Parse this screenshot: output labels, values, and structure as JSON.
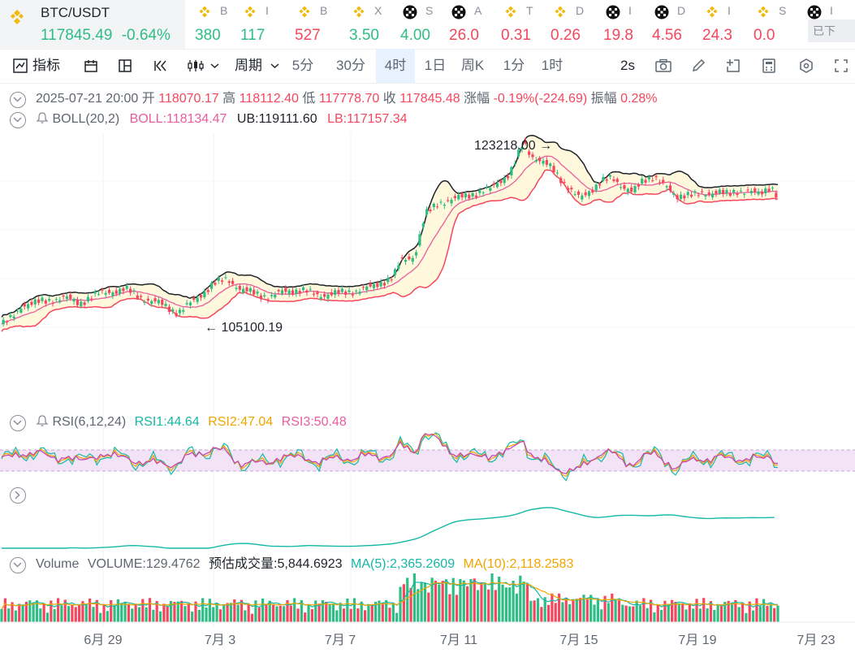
{
  "ticker": {
    "main": {
      "symbol": "BTC/USDT",
      "price": "117845.49",
      "change": "-0.64%"
    },
    "items": [
      {
        "icon": "bnb-icon",
        "symbol": "B",
        "price": "380",
        "color": "#2ebd85"
      },
      {
        "icon": "bnb-icon",
        "symbol": "I",
        "price": "117",
        "color": "#2ebd85"
      },
      {
        "icon": "bnb-icon",
        "symbol": "B",
        "price": "527",
        "color": "#f6465d"
      },
      {
        "icon": "bnb-icon",
        "symbol": "X",
        "price": "3.50",
        "color": "#2ebd85"
      },
      {
        "icon": "okx-icon",
        "symbol": "S",
        "price": "4.00",
        "color": "#2ebd85"
      },
      {
        "icon": "okx-icon",
        "symbol": "A",
        "price": "26.0",
        "color": "#f6465d"
      },
      {
        "icon": "bnb-icon",
        "symbol": "T",
        "price": "0.31",
        "color": "#f6465d"
      },
      {
        "icon": "bnb-icon",
        "symbol": "D",
        "price": "0.26",
        "color": "#f6465d"
      },
      {
        "icon": "okx-icon",
        "symbol": "I",
        "price": "19.8",
        "color": "#f6465d"
      },
      {
        "icon": "okx-icon",
        "symbol": "D",
        "price": "4.56",
        "color": "#f6465d"
      },
      {
        "icon": "bnb-icon",
        "symbol": "I",
        "price": "24.3",
        "color": "#f6465d"
      },
      {
        "icon": "bnb-icon",
        "symbol": "S",
        "price": "0.0",
        "color": "#f6465d"
      },
      {
        "icon": "okx-icon",
        "symbol": "I",
        "price": "",
        "color": "#f6465d"
      }
    ],
    "badge": "已下"
  },
  "toolbar": {
    "indicators": "指标",
    "period": "周期",
    "periods": [
      "5分",
      "30分",
      "4时",
      "1日",
      "周K",
      "1分",
      "1时"
    ],
    "selected_period": "4时",
    "refresh": "2s"
  },
  "ohlc": {
    "date": "2025-07-21 20:00",
    "open_label": "开",
    "open": "118070.17",
    "high_label": "高",
    "high": "118112.40",
    "low_label": "低",
    "low": "117778.70",
    "close_label": "收",
    "close": "117845.48",
    "chg_label": "涨幅",
    "chg": "-0.19%(-224.69)",
    "amp_label": "振幅",
    "amp": "0.28%"
  },
  "boll": {
    "name": "BOLL(20,2)",
    "mid": "BOLL:118134.47",
    "ub": "UB:119111.60",
    "lb": "LB:117157.34"
  },
  "rsi": {
    "name": "RSI(6,12,24)",
    "rsi1": "RSI1:44.64",
    "rsi2": "RSI2:47.04",
    "rsi3": "RSI3:50.48"
  },
  "volume": {
    "name": "Volume",
    "vol": "VOLUME:129.4762",
    "est": "预估成交量:5,844.6923",
    "ma5": "MA(5):2,365.2609",
    "ma10": "MA(10):2,118.2583"
  },
  "annotations": {
    "high": "123218.00",
    "low": "105100.19"
  },
  "xaxis": [
    "6月 29",
    "7月 3",
    "7月 7",
    "7月 11",
    "7月 15",
    "7月 19",
    "7月 23"
  ],
  "colors": {
    "up": "#2ebd85",
    "down": "#f6465d",
    "ub": "#1f2329",
    "mid": "#e85d9f",
    "lb": "#f6465d",
    "band": "#fff8dc",
    "rsi1": "#14b8a6",
    "rsi2": "#f0a500",
    "rsi3": "#c13fb5",
    "accent": "#2b6ef2"
  }
}
